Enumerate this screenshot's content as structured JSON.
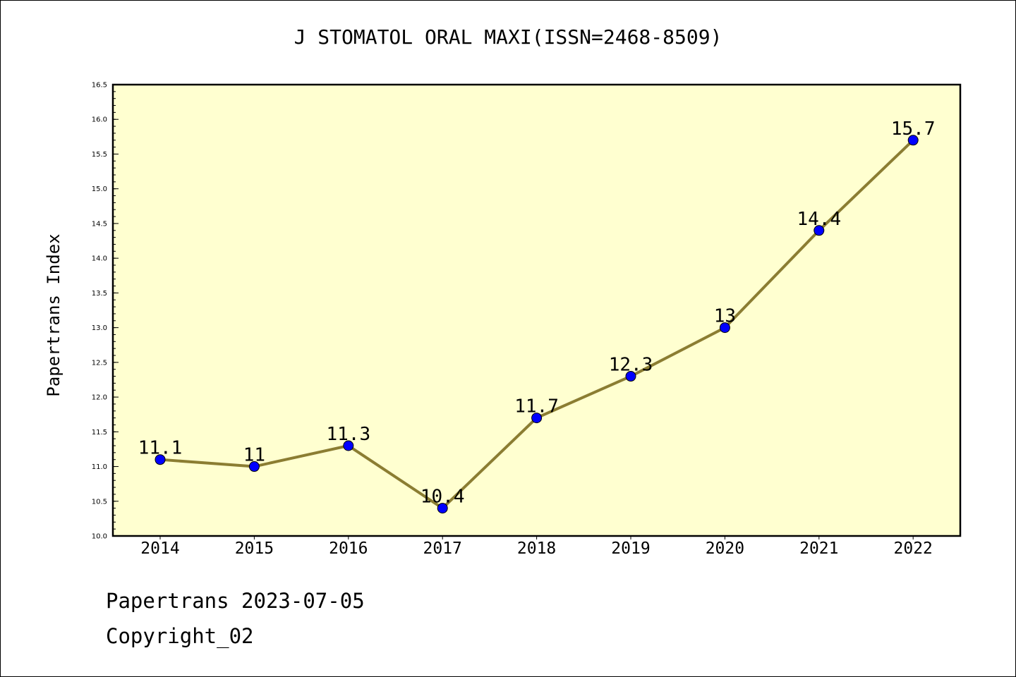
{
  "chart_data": {
    "type": "line",
    "title": "J STOMATOL ORAL MAXI(ISSN=2468-8509)",
    "xlabel": "",
    "ylabel": "Papertrans Index",
    "categories": [
      "2014",
      "2015",
      "2016",
      "2017",
      "2018",
      "2019",
      "2020",
      "2021",
      "2022"
    ],
    "series": [
      {
        "values": [
          11.1,
          11,
          11.3,
          10.4,
          11.7,
          12.3,
          13,
          14.4,
          15.7
        ],
        "data_labels": [
          "11.1",
          "11",
          "11.3",
          "10.4",
          "11.7",
          "12.3",
          "13",
          "14.4",
          "15.7"
        ]
      }
    ],
    "ylim": [
      10.0,
      16.5
    ],
    "yticks": [
      "10.0",
      "10.5",
      "11.0",
      "11.5",
      "12.0",
      "12.5",
      "13.0",
      "13.5",
      "14.0",
      "14.5",
      "15.0",
      "15.5",
      "16.0",
      "16.5"
    ],
    "grid": false,
    "colors": {
      "plot_background": "#ffffd0",
      "line": "#8b7d32",
      "marker": "#0000ff"
    }
  },
  "footer": {
    "line1": "Papertrans 2023-07-05",
    "line2": "Copyright_02"
  }
}
